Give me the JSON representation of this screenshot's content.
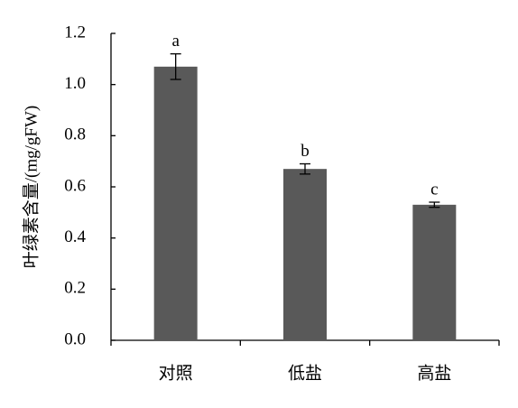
{
  "chart_data": {
    "type": "bar",
    "ylabel": "叶绿素含量/(mg/gFW)",
    "categories": [
      "对照",
      "低盐",
      "高盐"
    ],
    "values": [
      1.07,
      0.67,
      0.53
    ],
    "errors": [
      0.05,
      0.02,
      0.01
    ],
    "annotations": [
      "a",
      "b",
      "c"
    ],
    "color": "#595959",
    "ylim": [
      0,
      1.2
    ],
    "yticks": [
      {
        "value": 0,
        "label": "0.0"
      },
      0.2,
      0.4,
      0.6,
      0.8,
      {
        "value": 1,
        "label": "1.0"
      },
      1.2
    ],
    "grid": false
  }
}
